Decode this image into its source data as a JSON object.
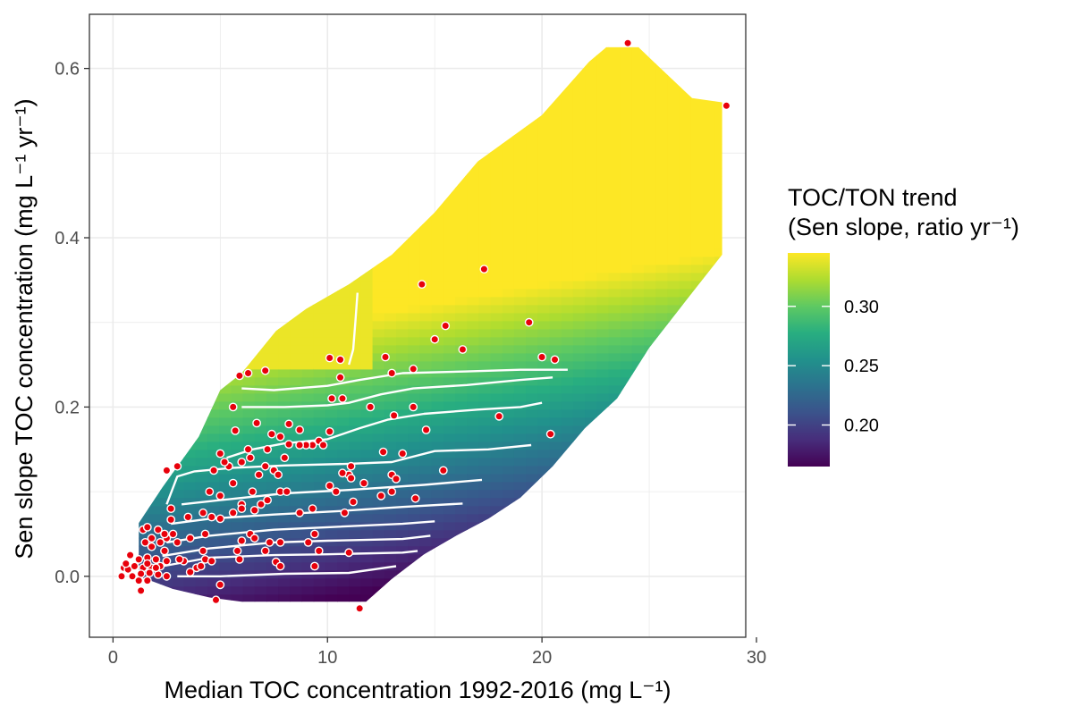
{
  "chart_data": {
    "type": "heatmap",
    "title": "",
    "xlabel": "Median TOC concentration 1992-2016 (mg L⁻¹)",
    "ylabel": "Sen slope TOC concentration (mg L⁻¹ yr⁻¹)",
    "xlim": [
      -1.1,
      29.5
    ],
    "ylim": [
      -0.072,
      0.664
    ],
    "x_ticks": [
      0,
      10,
      20,
      30
    ],
    "y_ticks": [
      0.0,
      0.2,
      0.4,
      0.6
    ],
    "x_tick_labels": [
      "0",
      "10",
      "20",
      "30"
    ],
    "y_tick_labels": [
      "0.0",
      "0.2",
      "0.4",
      "0.6"
    ],
    "grid": true,
    "legend": {
      "title_line1": "TOC/TON trend",
      "title_line2": "(Sen slope, ratio yr⁻¹)",
      "placement": "right",
      "min": 0.165,
      "max": 0.345,
      "ticks": [
        0.2,
        0.25,
        0.3
      ],
      "tick_labels": [
        "0.20",
        "0.25",
        "0.30"
      ],
      "colormap": "viridis"
    },
    "surface": {
      "band_upper": [
        [
          1.2,
          0.063
        ],
        [
          2.3,
          0.105
        ],
        [
          4.0,
          0.165
        ],
        [
          5.0,
          0.22
        ],
        [
          6.0,
          0.24
        ],
        [
          7.6,
          0.29
        ],
        [
          9.0,
          0.316
        ],
        [
          11.0,
          0.345
        ],
        [
          13.0,
          0.38
        ],
        [
          15.0,
          0.43
        ],
        [
          17.0,
          0.49
        ],
        [
          20.0,
          0.545
        ],
        [
          22.2,
          0.608
        ],
        [
          23.0,
          0.625
        ],
        [
          24.5,
          0.625
        ],
        [
          25.2,
          0.608
        ],
        [
          27.0,
          0.565
        ],
        [
          28.4,
          0.56
        ]
      ],
      "band_lower": [
        [
          1.2,
          0.0
        ],
        [
          2.8,
          -0.015
        ],
        [
          4.5,
          -0.025
        ],
        [
          6.0,
          -0.03
        ],
        [
          11.8,
          -0.03
        ],
        [
          13.0,
          -0.003
        ],
        [
          14.5,
          0.026
        ],
        [
          16.0,
          0.048
        ],
        [
          17.5,
          0.068
        ],
        [
          19.0,
          0.093
        ],
        [
          20.5,
          0.13
        ],
        [
          22.0,
          0.175
        ],
        [
          23.5,
          0.21
        ],
        [
          25.0,
          0.27
        ],
        [
          27.0,
          0.335
        ],
        [
          28.4,
          0.38
        ]
      ],
      "contours": [
        [
          [
            3.0,
            0.0
          ],
          [
            5.0,
            0.0
          ],
          [
            8.0,
            0.003
          ],
          [
            11.0,
            0.004
          ],
          [
            13.2,
            0.012
          ]
        ],
        [
          [
            2.3,
            0.012
          ],
          [
            4.5,
            0.022
          ],
          [
            7.5,
            0.025
          ],
          [
            10.0,
            0.026
          ],
          [
            13.5,
            0.028
          ],
          [
            14.2,
            0.03
          ]
        ],
        [
          [
            2.3,
            0.024
          ],
          [
            4.5,
            0.033
          ],
          [
            7.5,
            0.04
          ],
          [
            10.0,
            0.042
          ],
          [
            13.5,
            0.044
          ],
          [
            14.8,
            0.048
          ]
        ],
        [
          [
            2.5,
            0.04
          ],
          [
            4.5,
            0.048
          ],
          [
            7.5,
            0.055
          ],
          [
            10.0,
            0.058
          ],
          [
            13.5,
            0.062
          ],
          [
            15.0,
            0.065
          ]
        ],
        [
          [
            2.7,
            0.062
          ],
          [
            4.5,
            0.068
          ],
          [
            7.5,
            0.073
          ],
          [
            10.5,
            0.077
          ],
          [
            13.5,
            0.082
          ],
          [
            16.3,
            0.086
          ]
        ],
        [
          [
            3.2,
            0.085
          ],
          [
            5.0,
            0.09
          ],
          [
            8.0,
            0.098
          ],
          [
            11.0,
            0.102
          ],
          [
            14.5,
            0.108
          ],
          [
            17.2,
            0.114
          ]
        ],
        [
          [
            2.5,
            0.085
          ],
          [
            3.0,
            0.118
          ],
          [
            3.8,
            0.124
          ],
          [
            5.5,
            0.128
          ],
          [
            8.0,
            0.131
          ],
          [
            11.0,
            0.133
          ],
          [
            13.0,
            0.135
          ],
          [
            15.0,
            0.148
          ],
          [
            17.5,
            0.15
          ],
          [
            19.5,
            0.155
          ]
        ],
        [
          [
            5.3,
            0.14
          ],
          [
            6.5,
            0.15
          ],
          [
            8.0,
            0.157
          ],
          [
            10.0,
            0.162
          ],
          [
            11.5,
            0.175
          ],
          [
            12.8,
            0.185
          ],
          [
            14.5,
            0.192
          ],
          [
            17.0,
            0.197
          ],
          [
            19.0,
            0.2
          ],
          [
            20.0,
            0.205
          ]
        ],
        [
          [
            6.0,
            0.2
          ],
          [
            8.0,
            0.2
          ],
          [
            10.0,
            0.202
          ],
          [
            11.0,
            0.205
          ],
          [
            12.5,
            0.215
          ],
          [
            14.0,
            0.222
          ],
          [
            16.5,
            0.226
          ],
          [
            19.0,
            0.232
          ],
          [
            20.5,
            0.235
          ]
        ],
        [
          [
            6.0,
            0.222
          ],
          [
            7.5,
            0.22
          ],
          [
            10.0,
            0.225
          ],
          [
            11.5,
            0.232
          ],
          [
            13.5,
            0.24
          ],
          [
            16.5,
            0.242
          ],
          [
            19.0,
            0.244
          ],
          [
            21.2,
            0.244
          ]
        ],
        [
          [
            11.0,
            0.25
          ],
          [
            11.2,
            0.268
          ],
          [
            11.3,
            0.3
          ],
          [
            11.4,
            0.335
          ]
        ]
      ]
    },
    "points": [
      [
        24.0,
        0.63
      ],
      [
        28.6,
        0.556
      ],
      [
        17.3,
        0.363
      ],
      [
        14.4,
        0.345
      ],
      [
        19.4,
        0.3
      ],
      [
        15.5,
        0.296
      ],
      [
        15.0,
        0.28
      ],
      [
        16.3,
        0.268
      ],
      [
        20.0,
        0.259
      ],
      [
        20.6,
        0.256
      ],
      [
        12.7,
        0.259
      ],
      [
        10.1,
        0.258
      ],
      [
        10.6,
        0.256
      ],
      [
        14.0,
        0.245
      ],
      [
        13.0,
        0.24
      ],
      [
        10.6,
        0.235
      ],
      [
        5.9,
        0.237
      ],
      [
        7.1,
        0.243
      ],
      [
        6.3,
        0.24
      ],
      [
        10.2,
        0.21
      ],
      [
        10.7,
        0.21
      ],
      [
        12.0,
        0.2
      ],
      [
        14.0,
        0.2
      ],
      [
        13.1,
        0.19
      ],
      [
        18.0,
        0.189
      ],
      [
        5.6,
        0.2
      ],
      [
        6.7,
        0.181
      ],
      [
        7.4,
        0.168
      ],
      [
        7.8,
        0.165
      ],
      [
        8.2,
        0.18
      ],
      [
        8.7,
        0.173
      ],
      [
        5.7,
        0.172
      ],
      [
        14.6,
        0.173
      ],
      [
        20.4,
        0.168
      ],
      [
        10.1,
        0.171
      ],
      [
        9.6,
        0.16
      ],
      [
        9.3,
        0.155
      ],
      [
        9.0,
        0.155
      ],
      [
        8.7,
        0.155
      ],
      [
        8.2,
        0.156
      ],
      [
        9.8,
        0.155
      ],
      [
        12.6,
        0.147
      ],
      [
        13.5,
        0.145
      ],
      [
        6.3,
        0.15
      ],
      [
        5.0,
        0.145
      ],
      [
        7.2,
        0.15
      ],
      [
        4.7,
        0.125
      ],
      [
        5.4,
        0.13
      ],
      [
        5.2,
        0.135
      ],
      [
        6.0,
        0.135
      ],
      [
        6.4,
        0.14
      ],
      [
        7.1,
        0.13
      ],
      [
        7.5,
        0.125
      ],
      [
        8.0,
        0.14
      ],
      [
        7.7,
        0.12
      ],
      [
        6.8,
        0.12
      ],
      [
        11.1,
        0.13
      ],
      [
        11.0,
        0.12
      ],
      [
        10.7,
        0.122
      ],
      [
        11.1,
        0.116
      ],
      [
        13.0,
        0.12
      ],
      [
        15.4,
        0.125
      ],
      [
        2.5,
        0.125
      ],
      [
        3.0,
        0.13
      ],
      [
        10.1,
        0.107
      ],
      [
        10.4,
        0.1
      ],
      [
        11.7,
        0.11
      ],
      [
        13.2,
        0.115
      ],
      [
        13.0,
        0.1
      ],
      [
        12.5,
        0.095
      ],
      [
        14.1,
        0.092
      ],
      [
        11.2,
        0.088
      ],
      [
        10.8,
        0.075
      ],
      [
        4.5,
        0.1
      ],
      [
        5.0,
        0.095
      ],
      [
        5.6,
        0.11
      ],
      [
        6.5,
        0.1
      ],
      [
        7.8,
        0.1
      ],
      [
        8.1,
        0.1
      ],
      [
        8.7,
        0.075
      ],
      [
        9.3,
        0.08
      ],
      [
        6.0,
        0.085
      ],
      [
        6.9,
        0.085
      ],
      [
        7.2,
        0.09
      ],
      [
        6.6,
        0.078
      ],
      [
        2.7,
        0.08
      ],
      [
        3.5,
        0.07
      ],
      [
        4.2,
        0.075
      ],
      [
        4.6,
        0.07
      ],
      [
        5.0,
        0.068
      ],
      [
        5.6,
        0.075
      ],
      [
        6.0,
        0.08
      ],
      [
        2.7,
        0.067
      ],
      [
        4.3,
        0.05
      ],
      [
        3.6,
        0.045
      ],
      [
        3.0,
        0.04
      ],
      [
        2.5,
        0.045
      ],
      [
        2.8,
        0.05
      ],
      [
        6.4,
        0.05
      ],
      [
        6.6,
        0.045
      ],
      [
        6.0,
        0.042
      ],
      [
        7.3,
        0.04
      ],
      [
        7.8,
        0.04
      ],
      [
        9.1,
        0.04
      ],
      [
        9.4,
        0.05
      ],
      [
        9.6,
        0.03
      ],
      [
        11.0,
        0.028
      ],
      [
        7.1,
        0.03
      ],
      [
        5.8,
        0.03
      ],
      [
        4.2,
        0.03
      ],
      [
        4.3,
        0.02
      ],
      [
        3.3,
        0.018
      ],
      [
        3.1,
        0.02
      ],
      [
        2.4,
        0.03
      ],
      [
        1.4,
        0.055
      ],
      [
        1.6,
        0.058
      ],
      [
        2.1,
        0.055
      ],
      [
        1.8,
        0.045
      ],
      [
        1.5,
        0.04
      ],
      [
        1.8,
        0.035
      ],
      [
        2.2,
        0.04
      ],
      [
        2.4,
        0.05
      ],
      [
        0.8,
        0.025
      ],
      [
        1.2,
        0.02
      ],
      [
        1.6,
        0.022
      ],
      [
        2.0,
        0.02
      ],
      [
        2.5,
        0.018
      ],
      [
        0.5,
        0.01
      ],
      [
        0.7,
        0.008
      ],
      [
        1.0,
        0.012
      ],
      [
        1.4,
        0.01
      ],
      [
        1.8,
        0.01
      ],
      [
        2.2,
        0.012
      ],
      [
        0.4,
        0.0
      ],
      [
        0.9,
        0.0
      ],
      [
        1.3,
        0.003
      ],
      [
        1.7,
        0.004
      ],
      [
        2.1,
        0.002
      ],
      [
        2.5,
        0.0
      ],
      [
        1.2,
        -0.005
      ],
      [
        1.6,
        -0.005
      ],
      [
        1.3,
        -0.017
      ],
      [
        3.6,
        0.005
      ],
      [
        3.9,
        0.01
      ],
      [
        4.1,
        0.012
      ],
      [
        4.6,
        0.018
      ],
      [
        5.9,
        0.02
      ],
      [
        7.6,
        0.017
      ],
      [
        7.8,
        0.012
      ],
      [
        9.4,
        0.012
      ],
      [
        5.0,
        -0.01
      ],
      [
        4.8,
        -0.028
      ],
      [
        11.5,
        -0.038
      ],
      [
        2.0,
        0.01
      ],
      [
        1.6,
        0.015
      ],
      [
        0.6,
        0.015
      ]
    ]
  }
}
